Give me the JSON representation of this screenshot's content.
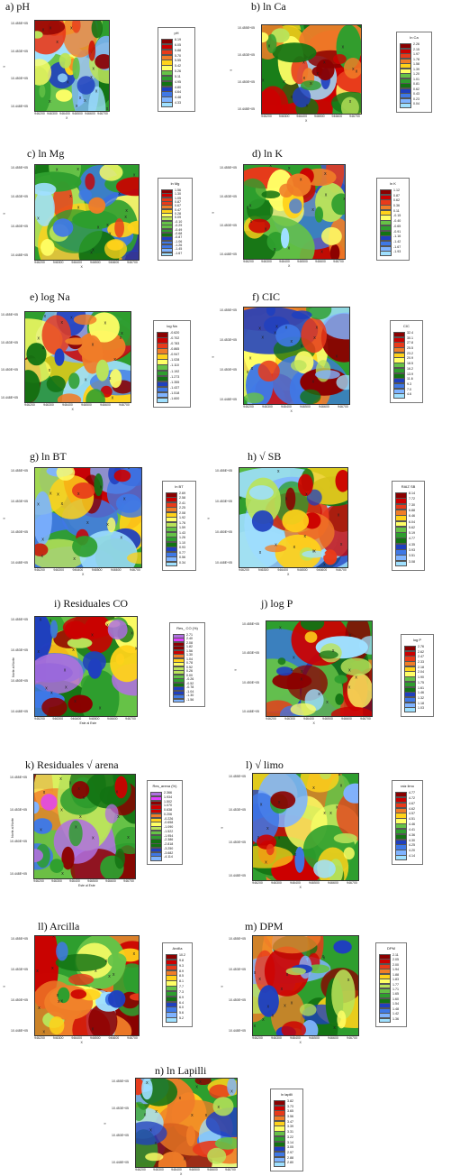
{
  "x_ticks": [
    "946200",
    "946300",
    "946400",
    "946500",
    "946600",
    "946700"
  ],
  "palettes": {
    "std": [
      "#8b0000",
      "#cc0000",
      "#e83a1a",
      "#f07d28",
      "#ffd21a",
      "#ffff66",
      "#b9e35a",
      "#66c247",
      "#2e9e2e",
      "#137313",
      "#1f3fbf",
      "#3f78e6",
      "#7fb3ff",
      "#9fe0ff"
    ],
    "res": [
      "#b070e0",
      "#e040ff",
      "#8b0000",
      "#cc0000",
      "#f07d28",
      "#ffd21a",
      "#ffff66",
      "#b9e35a",
      "#66c247",
      "#2e9e2e",
      "#137313",
      "#1f3fbf",
      "#3f78e6",
      "#7fb3ff"
    ]
  },
  "panels": [
    {
      "label": "a) pH",
      "legend_title": "pH",
      "palette": "std",
      "seed": 1,
      "y_ticks": [
        "10.455E+05",
        "10.453E+05",
        "10.450E+05",
        "10.448E+05"
      ],
      "y_title": "Y",
      "x_title": "X",
      "legend": [
        "6.19",
        "6.05",
        "5.88",
        "5.70",
        "5.55",
        "5.42",
        "5.26",
        "5.11",
        "4.95",
        "4.80",
        "4.64",
        "4.48",
        "4.33"
      ]
    },
    {
      "label": "b) ln Ca",
      "legend_title": "ln Ca",
      "palette": "std",
      "seed": 2,
      "y_ticks": [
        "10.455E+05",
        "10.453E+05",
        "10.450E+05",
        "10.448E+05"
      ],
      "y_title": "Y",
      "x_title": "X",
      "legend": [
        "2.26",
        "2.15",
        "1.97",
        "1.78",
        "1.58",
        "1.39",
        "1.20",
        "1.01",
        "0.81",
        "0.62",
        "0.43",
        "0.23",
        "0.04"
      ]
    },
    {
      "label": "c) ln Mg",
      "legend_title": "ln Mg",
      "palette": "std",
      "seed": 3,
      "y_ticks": [
        "10.455E+05",
        "10.453E+05",
        "10.450E+05",
        "10.448E+05"
      ],
      "y_title": "Y",
      "x_title": "X",
      "legend": [
        "1.56",
        "1.30",
        "1.05",
        "0.87",
        "0.67",
        "0.47",
        "0.28",
        "0.09",
        "-0.10",
        "-0.29",
        "-0.49",
        "-0.68",
        "-0.87",
        "-1.06",
        "-1.26",
        "-1.45",
        "-1.67"
      ]
    },
    {
      "label": "d) ln K",
      "legend_title": "ln K",
      "palette": "std",
      "seed": 4,
      "y_ticks": [
        "10.455E+05",
        "10.453E+05",
        "10.450E+05",
        "10.448E+05"
      ],
      "y_title": "Y",
      "x_title": "X",
      "legend": [
        "1.12",
        "0.87",
        "0.62",
        "0.36",
        "0.11",
        "-0.15",
        "-0.40",
        "-0.65",
        "-0.91",
        "-1.16",
        "-1.42",
        "-1.67",
        "-1.93"
      ]
    },
    {
      "label": "e)  log Na",
      "legend_title": "log Na",
      "palette": "std",
      "seed": 5,
      "y_ticks": [
        "10.455E+05",
        "10.453E+05",
        "10.450E+05",
        "10.448E+05"
      ],
      "y_title": "Y",
      "x_title": "X",
      "legend": [
        "-0.620",
        "-0.702",
        "-0.783",
        "-0.865",
        "-0.947",
        "-1.028",
        "-1.110",
        "-1.192",
        "-1.273",
        "-1.355",
        "-1.437",
        "-1.518",
        "-1.600"
      ]
    },
    {
      "label": "f)  CIC",
      "legend_title": "CIC",
      "palette": "std",
      "seed": 6,
      "y_ticks": [
        "10.455E+05",
        "10.453E+05",
        "10.450E+05",
        "10.448E+05"
      ],
      "y_title": "Y",
      "x_title": "X",
      "legend": [
        "32.4",
        "30.1",
        "27.8",
        "25.5",
        "23.2",
        "20.9",
        "18.5",
        "16.2",
        "13.9",
        "11.6",
        "9.3",
        "7.0",
        "4.6"
      ]
    },
    {
      "label": "g) ln BT",
      "legend_title": "ln BT",
      "palette": "std",
      "seed": 7,
      "y_ticks": [
        "10.455E+05",
        "10.453E+05",
        "10.450E+05",
        "10.448E+05"
      ],
      "y_title": "Y",
      "x_title": "X",
      "legend": [
        "2.69",
        "2.58",
        "2.41",
        "2.25",
        "2.08",
        "1.92",
        "1.76",
        "1.59",
        "1.43",
        "1.26",
        "1.10",
        "0.93",
        "0.77",
        "0.56",
        "0.34"
      ]
    },
    {
      "label": "h) √ SB",
      "legend_title": "RAIZ SB",
      "palette": "std",
      "seed": 8,
      "y_ticks": [
        "10.455E+05",
        "10.453E+05",
        "10.450E+05",
        "10.448E+05"
      ],
      "y_title": "Y",
      "x_title": "X",
      "legend": [
        "8.14",
        "7.72",
        "7.30",
        "6.88",
        "6.46",
        "6.04",
        "5.62",
        "5.19",
        "4.77",
        "4.35",
        "3.93",
        "3.51",
        "3.08"
      ]
    },
    {
      "label": "i)  Residuales CO",
      "legend_title": "Res_ CO (%)",
      "palette": "res",
      "seed": 9,
      "y_ticks": [
        "10.455E+05",
        "10.453E+05",
        "10.450E+05",
        "10.448E+05"
      ],
      "y_title": "Norte al Norte",
      "x_title": "Este al Este",
      "legend": [
        "2.71",
        "2.40",
        "2.08",
        "1.82",
        "1.56",
        "1.30",
        "1.04",
        "0.78",
        "0.52",
        "0.26",
        "0.00",
        "-0.26",
        "-0.52",
        "-0.78",
        "-1.04",
        "-1.30",
        "-1.56"
      ]
    },
    {
      "label": "j) log P",
      "legend_title": "log P",
      "palette": "std",
      "seed": 10,
      "y_ticks": [
        "10.455E+05",
        "10.453E+05",
        "10.450E+05",
        "10.448E+05"
      ],
      "y_title": "Y",
      "x_title": "X",
      "legend": [
        "2.76",
        "2.62",
        "2.47",
        "2.33",
        "2.18",
        "2.04",
        "1.90",
        "1.75",
        "1.61",
        "1.46",
        "1.32",
        "1.18",
        "1.03"
      ]
    },
    {
      "label": "k) Residuales √ arena",
      "legend_title": "Res_arena (%)",
      "palette": "res",
      "seed": 11,
      "y_ticks": [
        "10.455E+05",
        "10.453E+05",
        "10.450E+05",
        "10.448E+05"
      ],
      "y_title": "Norte al Norte",
      "x_title": "Este al Este",
      "legend": [
        "2.366",
        "1.934",
        "1.502",
        "1.070",
        "0.638",
        "0.206",
        "-0.226",
        "-0.658",
        "-1.090",
        "-1.522",
        "-1.954",
        "-2.386",
        "-2.818",
        "-3.250",
        "-3.682",
        "-4.114"
      ]
    },
    {
      "label": "l)  √ limo",
      "legend_title": "raiz limo",
      "palette": "std",
      "seed": 12,
      "y_ticks": [
        "10.455E+05",
        "10.453E+05",
        "10.450E+05",
        "10.448E+05"
      ],
      "y_title": "Y",
      "x_title": "X",
      "legend": [
        "4.77",
        "4.72",
        "4.67",
        "4.62",
        "4.57",
        "4.51",
        "4.46",
        "4.41",
        "4.36",
        "4.30",
        "4.25",
        "4.20",
        "4.14"
      ]
    },
    {
      "label": "ll) Arcilla",
      "legend_title": "Arcilla",
      "palette": "std",
      "seed": 13,
      "y_ticks": [
        "10.455E+05",
        "10.453E+05",
        "10.450E+05",
        "10.448E+05"
      ],
      "y_title": "Y",
      "x_title": "X",
      "legend": [
        "10.2",
        "9.8",
        "9.3",
        "8.9",
        "8.5",
        "8.1",
        "7.7",
        "7.3",
        "6.9",
        "6.4",
        "6.0",
        "5.6",
        "5.2"
      ]
    },
    {
      "label": "m)  DPM",
      "legend_title": "DPM",
      "palette": "std",
      "seed": 14,
      "y_ticks": [
        "10.455E+05",
        "10.453E+05",
        "10.450E+05",
        "10.448E+05"
      ],
      "y_title": "Y",
      "x_title": "X",
      "legend": [
        "2.11",
        "2.05",
        "2.00",
        "1.94",
        "1.88",
        "1.83",
        "1.77",
        "1.71",
        "1.65",
        "1.60",
        "1.54",
        "1.48",
        "1.42",
        "1.36"
      ]
    },
    {
      "label": "n) ln Lapilli",
      "legend_title": "ln lapilli",
      "palette": "std",
      "seed": 15,
      "y_ticks": [
        "10.455E+05",
        "10.453E+05",
        "10.450E+05",
        "10.448E+05"
      ],
      "y_title": "Y",
      "x_title": "X",
      "legend": [
        "3.82",
        "3.73",
        "3.65",
        "3.56",
        "3.47",
        "3.39",
        "3.31",
        "3.22",
        "3.14",
        "3.05",
        "2.97",
        "2.88",
        "2.80"
      ]
    }
  ]
}
